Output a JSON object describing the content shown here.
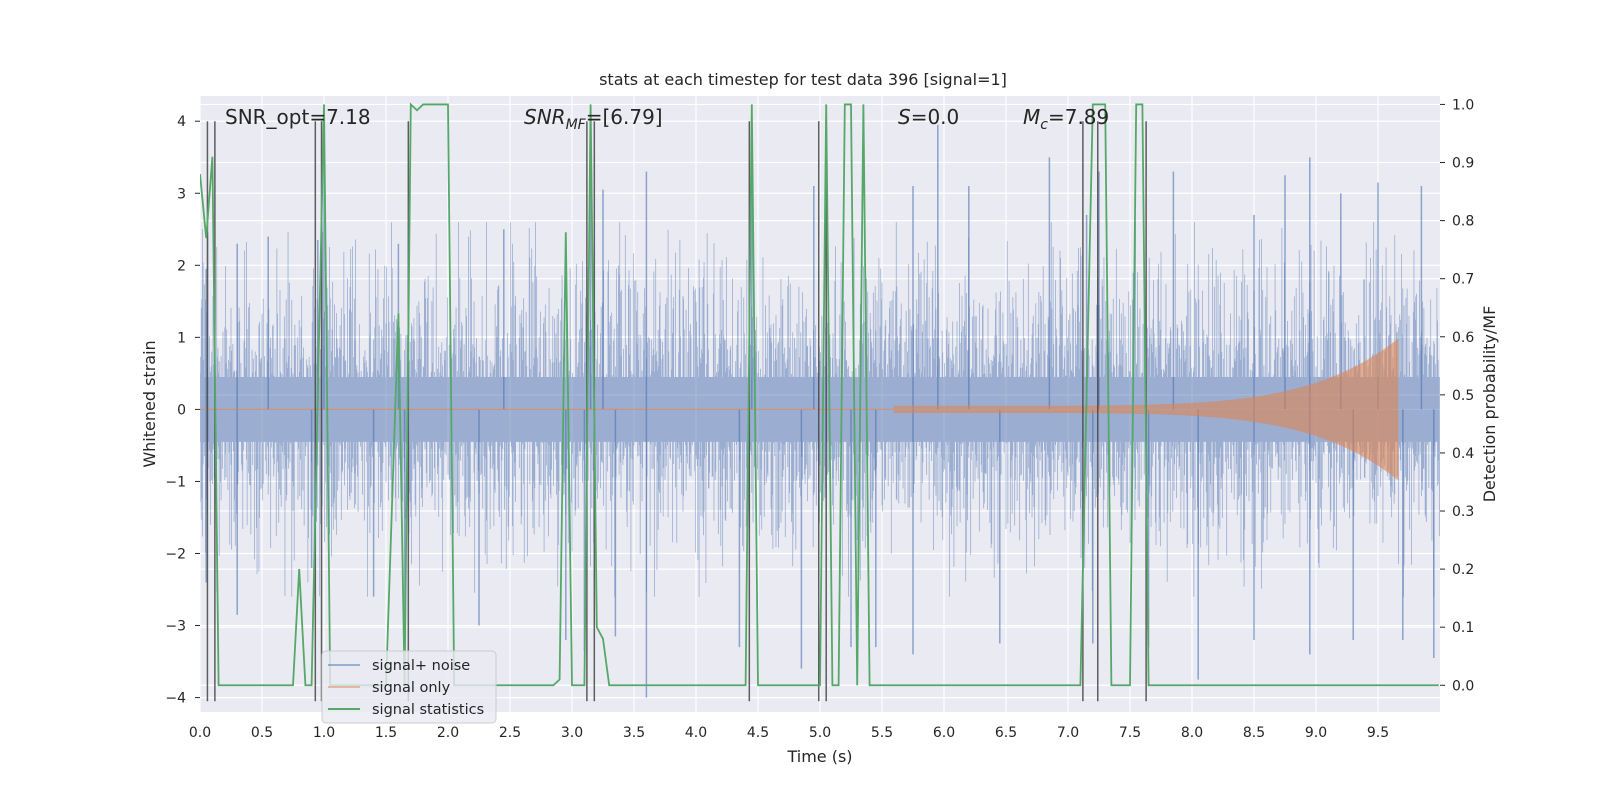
{
  "chart_data": {
    "type": "line",
    "title": "stats at each timestep for test data 396 [signal=1]",
    "xlabel": "Time (s)",
    "ylabel": "Whitened strain",
    "y2label": "Detection probability/MF",
    "xlim": [
      0,
      10
    ],
    "ylim": [
      -4.2,
      4.35
    ],
    "y2lim": [
      -0.046,
      1.0145
    ],
    "x_ticks": [
      0.0,
      0.5,
      1.0,
      1.5,
      2.0,
      2.5,
      3.0,
      3.5,
      4.0,
      4.5,
      5.0,
      5.5,
      6.0,
      6.5,
      7.0,
      7.5,
      8.0,
      8.5,
      9.0,
      9.5
    ],
    "y_ticks": [
      -4,
      -3,
      -2,
      -1,
      0,
      1,
      2,
      3,
      4
    ],
    "y2_ticks": [
      0.0,
      0.1,
      0.2,
      0.3,
      0.4,
      0.5,
      0.6,
      0.7,
      0.8,
      0.9,
      1.0
    ],
    "grid": true,
    "legend_position": "lower-left",
    "annotations": {
      "snr_opt": "SNR_opt=7.18",
      "snr_mf_sym": "SNR",
      "snr_mf_sub": "MF",
      "snr_mf_val": "=[6.79]",
      "s_sym": "S",
      "s_val": "=0.0",
      "mc_sym": "M",
      "mc_sub": "c",
      "mc_val": "=7.89"
    },
    "series": [
      {
        "name": "signal+ noise",
        "color": "#4c72b0",
        "kind": "noise",
        "seed": 396,
        "core_sigma": 0.8,
        "extreme_max": [
          [
            0.05,
            1.95
          ],
          [
            0.3,
            2.3
          ],
          [
            0.55,
            2.4
          ],
          [
            0.95,
            2.35
          ],
          [
            1.0,
            3.9
          ],
          [
            1.6,
            2.3
          ],
          [
            2.45,
            2.5
          ],
          [
            3.15,
            3.5
          ],
          [
            3.25,
            3.05
          ],
          [
            3.6,
            3.3
          ],
          [
            4.45,
            3.1
          ],
          [
            4.95,
            3.1
          ],
          [
            5.75,
            3.1
          ],
          [
            5.95,
            3.95
          ],
          [
            6.2,
            3.1
          ],
          [
            6.85,
            3.5
          ],
          [
            7.15,
            2.7
          ],
          [
            7.25,
            3.3
          ],
          [
            7.85,
            3.3
          ],
          [
            8.5,
            2.7
          ],
          [
            8.75,
            3.25
          ],
          [
            8.95,
            3.5
          ],
          [
            9.2,
            3.0
          ],
          [
            9.5,
            3.15
          ],
          [
            9.85,
            3.1
          ]
        ],
        "extreme_min": [
          [
            0.05,
            -2.4
          ],
          [
            0.3,
            -2.85
          ],
          [
            0.9,
            -2.2
          ],
          [
            1.4,
            -2.6
          ],
          [
            1.65,
            -3.55
          ],
          [
            2.25,
            -3.0
          ],
          [
            2.95,
            -3.2
          ],
          [
            3.1,
            -3.35
          ],
          [
            3.35,
            -3.15
          ],
          [
            3.6,
            -4.0
          ],
          [
            4.35,
            -3.3
          ],
          [
            4.85,
            -3.6
          ],
          [
            5.25,
            -3.3
          ],
          [
            5.45,
            -3.3
          ],
          [
            5.75,
            -3.4
          ],
          [
            6.45,
            -3.25
          ],
          [
            7.2,
            -3.25
          ],
          [
            7.65,
            -3.3
          ],
          [
            8.05,
            -3.75
          ],
          [
            8.5,
            -3.2
          ],
          [
            8.95,
            -3.4
          ],
          [
            9.3,
            -3.2
          ],
          [
            9.7,
            -3.2
          ],
          [
            9.95,
            -3.45
          ]
        ]
      },
      {
        "name": "signal only",
        "color": "#dd8452",
        "kind": "chirp",
        "start_time": 5.6,
        "end_time": 9.66,
        "amplitude_start": 0.05,
        "amplitude_end": 0.98
      },
      {
        "name": "signal statistics",
        "color": "#55a868",
        "axis": "right",
        "x": [
          0.0,
          0.05,
          0.1,
          0.15,
          0.2,
          0.75,
          0.8,
          0.85,
          0.9,
          1.0,
          1.05,
          1.1,
          1.15,
          1.5,
          1.6,
          1.65,
          1.7,
          1.75,
          1.8,
          2.0,
          2.05,
          2.1,
          2.85,
          2.9,
          2.95,
          3.0,
          3.1,
          3.15,
          3.2,
          3.25,
          3.3,
          4.4,
          4.45,
          4.5,
          4.55,
          4.8,
          4.85,
          5.0,
          5.05,
          5.1,
          5.15,
          5.2,
          5.25,
          5.3,
          5.35,
          5.4,
          7.1,
          7.2,
          7.3,
          7.35,
          7.5,
          7.55,
          7.6,
          7.65,
          7.7,
          7.75,
          9.99
        ],
        "y": [
          0.88,
          0.77,
          0.91,
          0.0,
          0.0,
          0.0,
          0.2,
          0.0,
          0.0,
          1.0,
          0.0,
          0.0,
          0.0,
          0.0,
          0.64,
          0.0,
          1.0,
          0.99,
          1.0,
          1.0,
          0.0,
          0.0,
          0.0,
          0.01,
          0.78,
          0.0,
          0.0,
          1.0,
          0.1,
          0.08,
          0.0,
          0.0,
          1.0,
          0.0,
          0.0,
          0.0,
          0.0,
          0.0,
          1.0,
          0.0,
          0.0,
          1.0,
          1.0,
          0.0,
          1.0,
          0.0,
          0.0,
          1.0,
          1.0,
          0.0,
          0.0,
          1.0,
          1.0,
          0.0,
          0.0,
          0.0,
          0.0
        ]
      }
    ],
    "threshold_lines": {
      "color": "#444444",
      "x": [
        0.06,
        0.12,
        0.93,
        0.98,
        1.68,
        3.12,
        3.18,
        4.43,
        4.99,
        5.05,
        7.12,
        7.24,
        7.63
      ]
    }
  }
}
